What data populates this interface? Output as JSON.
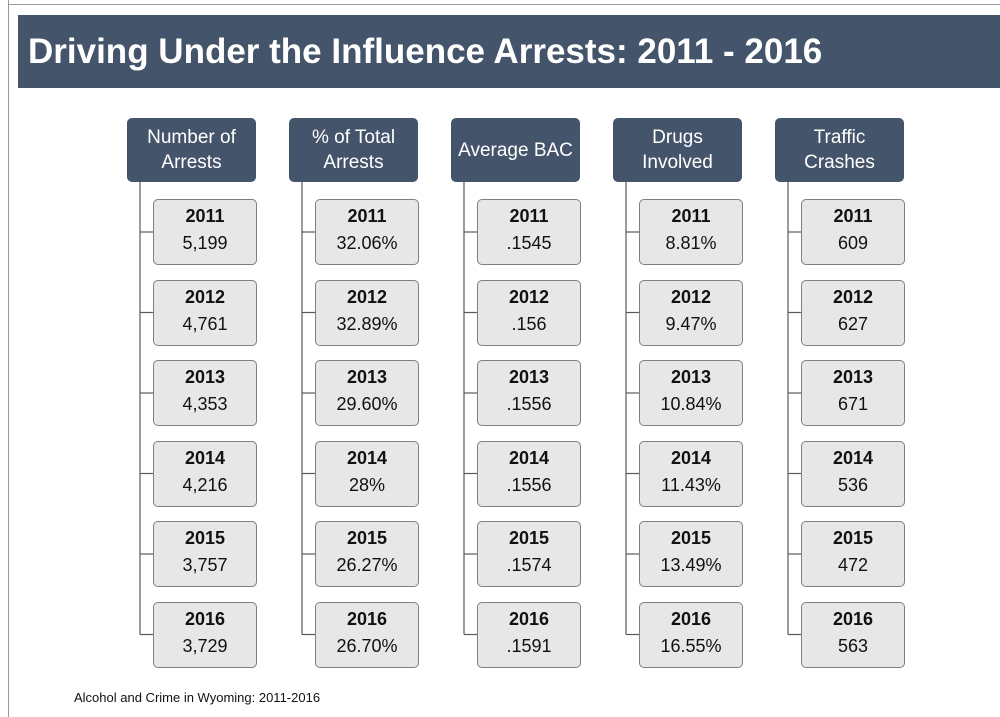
{
  "title": "Driving Under the Influence Arrests: 2011 - 2016",
  "columns": [
    {
      "header": "Number of Arrests",
      "items": [
        {
          "year": "2011",
          "value": "5,199"
        },
        {
          "year": "2012",
          "value": "4,761"
        },
        {
          "year": "2013",
          "value": "4,353"
        },
        {
          "year": "2014",
          "value": "4,216"
        },
        {
          "year": "2015",
          "value": "3,757"
        },
        {
          "year": "2016",
          "value": "3,729"
        }
      ]
    },
    {
      "header": "% of Total Arrests",
      "items": [
        {
          "year": "2011",
          "value": "32.06%"
        },
        {
          "year": "2012",
          "value": "32.89%"
        },
        {
          "year": "2013",
          "value": "29.60%"
        },
        {
          "year": "2014",
          "value": "28%"
        },
        {
          "year": "2015",
          "value": "26.27%"
        },
        {
          "year": "2016",
          "value": "26.70%"
        }
      ]
    },
    {
      "header": "Average BAC",
      "items": [
        {
          "year": "2011",
          "value": ".1545"
        },
        {
          "year": "2012",
          "value": ".156"
        },
        {
          "year": "2013",
          "value": ".1556"
        },
        {
          "year": "2014",
          "value": ".1556"
        },
        {
          "year": "2015",
          "value": ".1574"
        },
        {
          "year": "2016",
          "value": ".1591"
        }
      ]
    },
    {
      "header": "Drugs Involved",
      "items": [
        {
          "year": "2011",
          "value": "8.81%"
        },
        {
          "year": "2012",
          "value": "9.47%"
        },
        {
          "year": "2013",
          "value": "10.84%"
        },
        {
          "year": "2014",
          "value": "11.43%"
        },
        {
          "year": "2015",
          "value": "13.49%"
        },
        {
          "year": "2016",
          "value": "16.55%"
        }
      ]
    },
    {
      "header": "Traffic Crashes",
      "items": [
        {
          "year": "2011",
          "value": "609"
        },
        {
          "year": "2012",
          "value": "627"
        },
        {
          "year": "2013",
          "value": "671"
        },
        {
          "year": "2014",
          "value": "536"
        },
        {
          "year": "2015",
          "value": "472"
        },
        {
          "year": "2016",
          "value": "563"
        }
      ]
    }
  ],
  "footer": "Alcohol and Crime in Wyoming: 2011-2016"
}
